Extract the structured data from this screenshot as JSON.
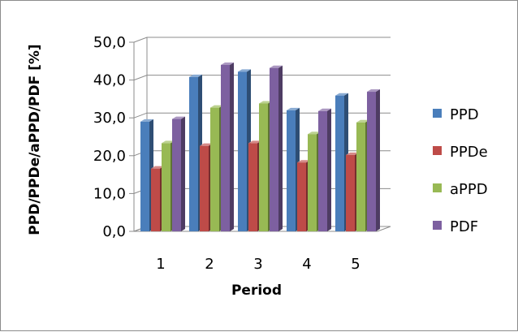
{
  "chart_data": {
    "type": "bar",
    "style": "3d-clustered-column",
    "title": "",
    "xlabel": "Period",
    "ylabel": "PPD/PPDe/aPPD/PDF [%]",
    "categories": [
      "1",
      "2",
      "3",
      "4",
      "5"
    ],
    "ylim": [
      0,
      50
    ],
    "yticks": [
      "0,0",
      "10,0",
      "20,0",
      "30,0",
      "40,0",
      "50,0"
    ],
    "grid": true,
    "legend_position": "right",
    "series": [
      {
        "name": "PPD",
        "color": "#4a7ebb",
        "values": [
          29.0,
          40.8,
          42.2,
          32.0,
          35.9
        ]
      },
      {
        "name": "PPDe",
        "color": "#be4b48",
        "values": [
          16.6,
          22.6,
          23.3,
          18.2,
          20.2
        ]
      },
      {
        "name": "aPPD",
        "color": "#98b954",
        "values": [
          23.3,
          32.7,
          33.8,
          25.7,
          28.8
        ]
      },
      {
        "name": "PDF",
        "color": "#7d60a0",
        "values": [
          29.7,
          44.0,
          43.2,
          31.8,
          36.9
        ]
      }
    ]
  }
}
